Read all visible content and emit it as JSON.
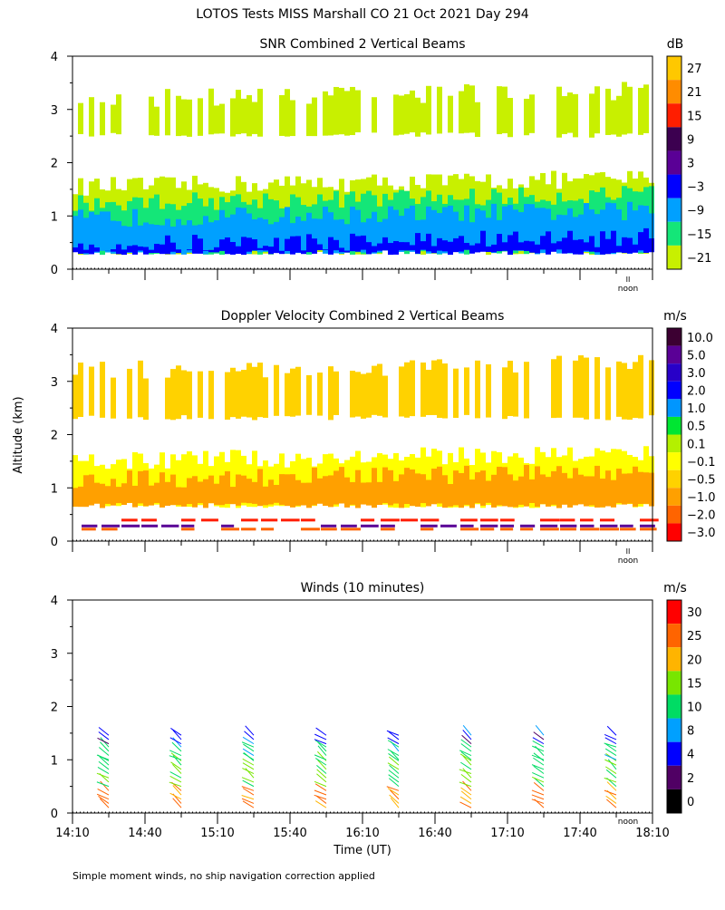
{
  "page": {
    "title": "LOTOS Tests MISS Marshall CO  21 Oct 2021 Day 294",
    "y_axis_label": "Altitude (km)",
    "x_axis_label": "Time (UT)",
    "footnote": "Simple moment winds, no ship navigation correction applied",
    "noon_label": "noon",
    "noon_mark": "II"
  },
  "chart_data": [
    {
      "type": "heatmap",
      "title": "SNR Combined 2 Vertical Beams",
      "ylabel": "Altitude (km)",
      "ylim": [
        0,
        4
      ],
      "yticks": [
        "0",
        "1",
        "2",
        "3",
        "4"
      ],
      "xlim_minutes": [
        850,
        1090
      ],
      "colorbar": {
        "unit": "dB",
        "labels": [
          "27",
          "21",
          "15",
          "9",
          "3",
          "−3",
          "−9",
          "−15",
          "−21"
        ],
        "colors": [
          "#ffc800",
          "#ff8c00",
          "#ff1e00",
          "#3c0050",
          "#5a0096",
          "#0000ff",
          "#00a0ff",
          "#14e678",
          "#c8f000"
        ]
      },
      "layers": [
        {
          "level": "−21",
          "alt_lo": 0.3,
          "alt_hi": 1.55,
          "color": "#c8f000"
        },
        {
          "level": "−15",
          "alt_lo": 0.3,
          "alt_hi": 1.25,
          "color": "#14e678"
        },
        {
          "level": "−9",
          "alt_lo": 0.3,
          "alt_hi": 0.95,
          "color": "#00a0ff"
        },
        {
          "level": "−3",
          "alt_lo": 0.3,
          "alt_hi": 0.45,
          "color": "#0000ff"
        },
        {
          "level": "−21",
          "alt_lo": 2.5,
          "alt_hi": 3.2,
          "color": "#c8f000"
        }
      ]
    },
    {
      "type": "heatmap",
      "title": "Doppler Velocity Combined 2 Vertical Beams",
      "ylabel": "Altitude (km)",
      "ylim": [
        0,
        4
      ],
      "yticks": [
        "0",
        "1",
        "2",
        "3",
        "4"
      ],
      "xlim_minutes": [
        850,
        1090
      ],
      "colorbar": {
        "unit": "m/s",
        "labels": [
          "10.0",
          "5.0",
          "3.0",
          "2.0",
          "1.0",
          "0.5",
          "0.1",
          "−0.1",
          "−0.5",
          "−1.0",
          "−2.0",
          "−3.0"
        ],
        "colors": [
          "#3c0032",
          "#5a0096",
          "#2800c8",
          "#0000ff",
          "#0096ff",
          "#00e632",
          "#b4f000",
          "#ffff00",
          "#ffd200",
          "#ffa000",
          "#ff6400",
          "#ff0000"
        ]
      },
      "layers": [
        {
          "level": "−0.1",
          "alt_lo": 0.65,
          "alt_hi": 1.5,
          "color": "#ffff00"
        },
        {
          "level": "−1.0",
          "alt_lo": 0.65,
          "alt_hi": 1.15,
          "color": "#ffa000"
        },
        {
          "level": "−0.5",
          "alt_lo": 2.3,
          "alt_hi": 3.2,
          "color": "#ffd200"
        }
      ]
    },
    {
      "type": "barbs",
      "title": "Winds (10 minutes)",
      "xlabel": "Time (UT)",
      "ylabel": "Altitude (km)",
      "ylim": [
        0,
        4
      ],
      "yticks": [
        "0",
        "1",
        "2",
        "3",
        "4"
      ],
      "xlim_minutes": [
        850,
        1090
      ],
      "xticks": [
        "14:10",
        "14:40",
        "15:10",
        "15:40",
        "16:10",
        "16:40",
        "17:10",
        "17:40",
        "18:10"
      ],
      "colorbar": {
        "unit": "m/s",
        "labels": [
          "30",
          "25",
          "20",
          "15",
          "10",
          "8",
          "4",
          "2",
          "0"
        ],
        "colors": [
          "#ff0000",
          "#ff6400",
          "#ffb400",
          "#78e600",
          "#00dc64",
          "#00a0ff",
          "#0000ff",
          "#500064",
          "#000000"
        ]
      },
      "profiles_time_minutes": [
        865,
        895,
        925,
        955,
        985,
        1015,
        1045,
        1075
      ],
      "speed_bins": [
        {
          "alt_lo": 0.1,
          "alt_hi": 0.5,
          "speed": 26
        },
        {
          "alt_lo": 0.5,
          "alt_hi": 1.0,
          "speed": 16
        },
        {
          "alt_lo": 1.0,
          "alt_hi": 1.3,
          "speed": 11
        },
        {
          "alt_lo": 1.3,
          "alt_hi": 1.5,
          "speed": 6
        }
      ]
    }
  ]
}
